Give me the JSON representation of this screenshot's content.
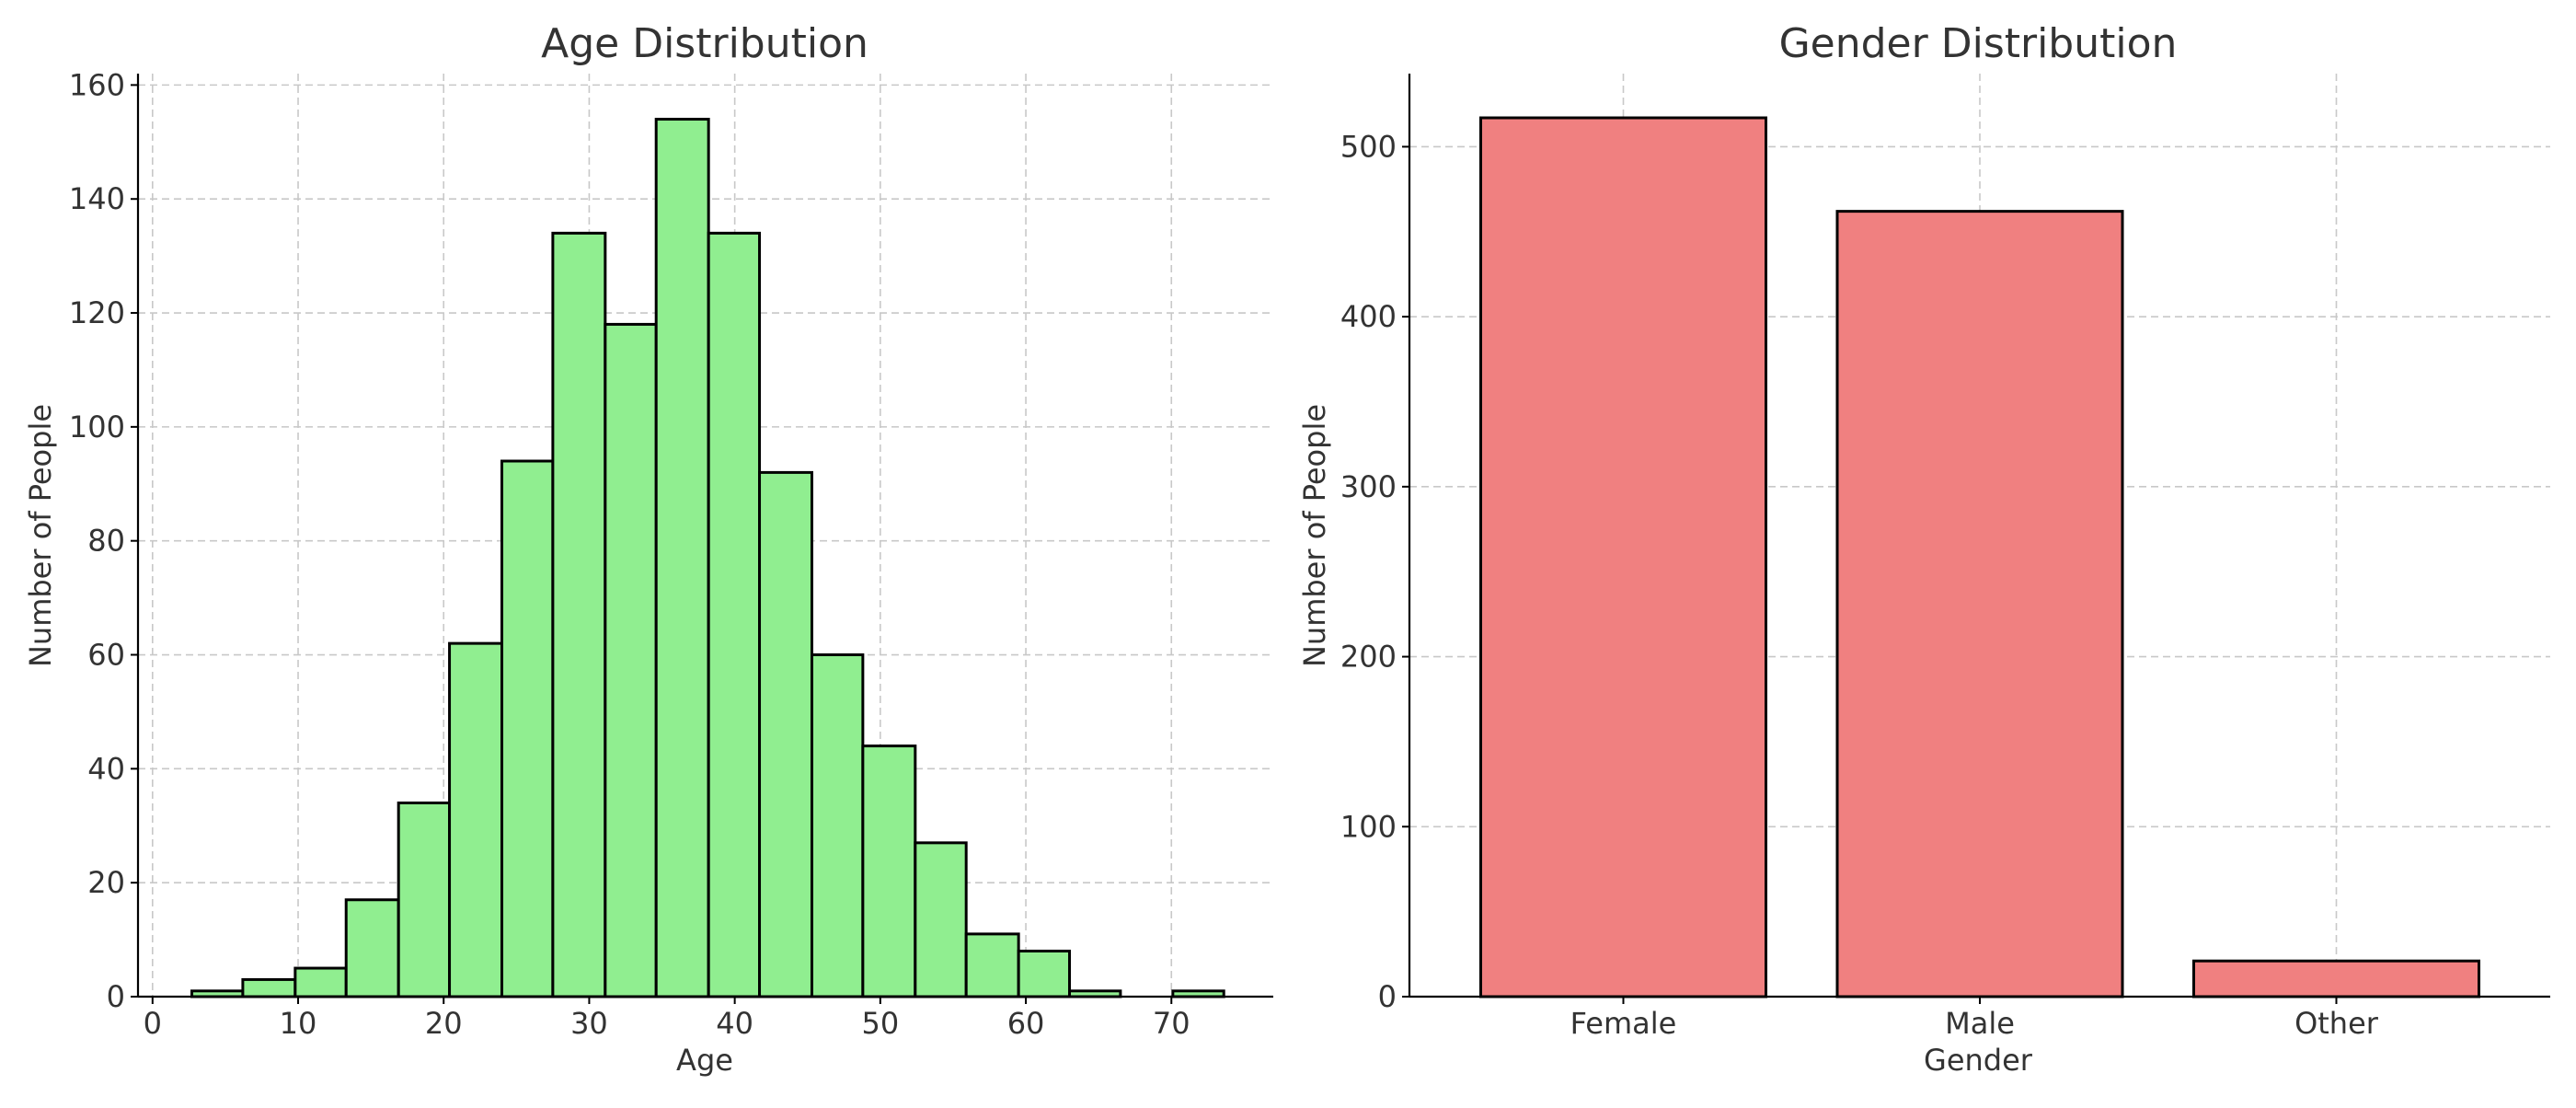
{
  "colors": {
    "age_bar": "#90ee90",
    "gender_bar": "#f08080"
  },
  "chart_data": [
    {
      "type": "bar",
      "title": "Age Distribution",
      "xlabel": "Age",
      "ylabel": "Number of People",
      "bin_edges": [
        2.7,
        6.2,
        9.8,
        13.3,
        16.9,
        20.4,
        24.0,
        27.5,
        31.1,
        34.6,
        38.2,
        41.7,
        45.3,
        48.8,
        52.4,
        55.9,
        59.5,
        63.0,
        66.5,
        70.1,
        73.6
      ],
      "values": [
        1,
        3,
        5,
        17,
        34,
        62,
        94,
        134,
        118,
        154,
        134,
        92,
        60,
        44,
        27,
        11,
        8,
        1,
        0,
        1
      ],
      "xlim": [
        -1,
        77
      ],
      "ylim": [
        0,
        162
      ],
      "xticks": [
        0,
        10,
        20,
        30,
        40,
        50,
        60,
        70
      ],
      "yticks": [
        0,
        20,
        40,
        60,
        80,
        100,
        120,
        140,
        160
      ],
      "xtick_labels": [
        "0",
        "10",
        "20",
        "30",
        "40",
        "50",
        "60",
        "70"
      ],
      "ytick_labels": [
        "0",
        "20",
        "40",
        "60",
        "80",
        "100",
        "120",
        "140",
        "160"
      ],
      "grid": true
    },
    {
      "type": "bar",
      "title": "Gender Distribution",
      "xlabel": "Gender",
      "ylabel": "Number of People",
      "categories": [
        "Female",
        "Male",
        "Other"
      ],
      "values": [
        517,
        462,
        21
      ],
      "ylim": [
        0,
        543
      ],
      "yticks": [
        0,
        100,
        200,
        300,
        400,
        500
      ],
      "ytick_labels": [
        "0",
        "100",
        "200",
        "300",
        "400",
        "500"
      ],
      "grid": true
    }
  ]
}
